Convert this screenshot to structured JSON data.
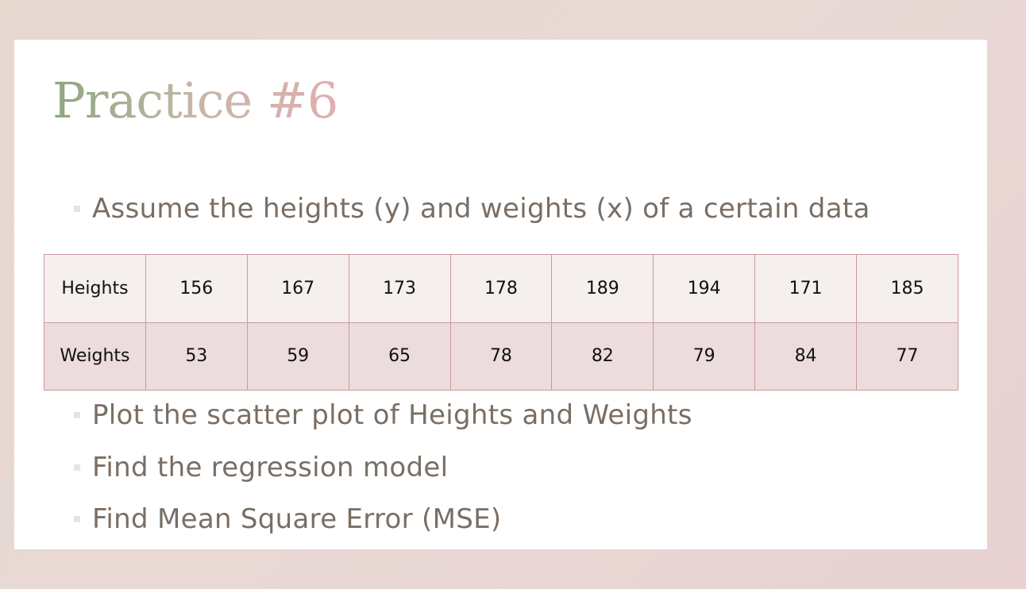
{
  "slide": {
    "title": "Practice #6",
    "intro_bullet": "Assume the heights (y) and weights (x) of a certain data",
    "table": {
      "rows": [
        {
          "label": "Heights",
          "values": [
            "156",
            "167",
            "173",
            "178",
            "189",
            "194",
            "171",
            "185"
          ]
        },
        {
          "label": "Weights",
          "values": [
            "53",
            "59",
            "65",
            "78",
            "82",
            "79",
            "84",
            "77"
          ]
        }
      ]
    },
    "tasks": [
      "Plot the scatter plot of Heights and Weights",
      "Find the regression model",
      "Find Mean Square Error (MSE)"
    ]
  },
  "colors": {
    "title_gradient_start": "#8ea67e",
    "title_gradient_end": "#e0aeb0",
    "body_text": "#7a6e64",
    "table_border": "#cd999c",
    "row1_fill": "#f5efee",
    "row2_fill": "#ecdcdd"
  }
}
